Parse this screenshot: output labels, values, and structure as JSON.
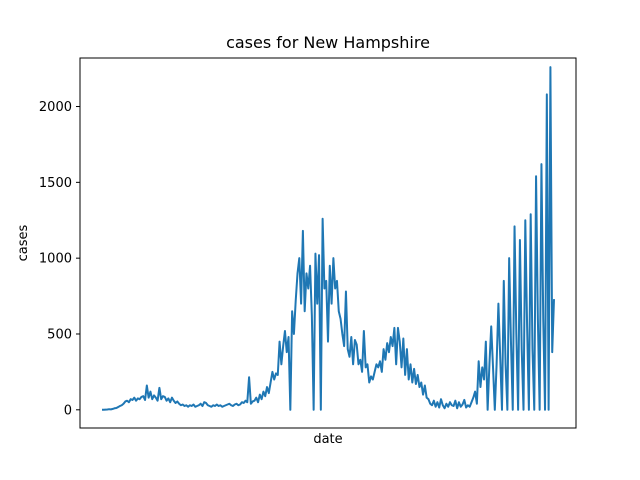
{
  "chart_data": {
    "type": "line",
    "title": "cases for New Hampshire",
    "xlabel": "date",
    "ylabel": "cases",
    "ylim": [
      -120,
      2320
    ],
    "yticks": [
      0,
      500,
      1000,
      1500,
      2000
    ],
    "xticks": [],
    "grid": false,
    "color": "#1f77b4",
    "series": [
      {
        "values": [
          0,
          0,
          1,
          2,
          4,
          3,
          6,
          10,
          12,
          18,
          25,
          30,
          40,
          55,
          60,
          50,
          70,
          65,
          80,
          60,
          75,
          70,
          85,
          90,
          65,
          160,
          80,
          120,
          70,
          95,
          80,
          60,
          145,
          70,
          90,
          85,
          60,
          75,
          50,
          80,
          60,
          45,
          55,
          40,
          30,
          35,
          25,
          30,
          20,
          30,
          25,
          35,
          20,
          25,
          30,
          40,
          25,
          50,
          45,
          30,
          25,
          20,
          30,
          25,
          35,
          25,
          30,
          20,
          25,
          30,
          35,
          40,
          30,
          25,
          35,
          40,
          30,
          35,
          50,
          45,
          60,
          50,
          215,
          40,
          55,
          60,
          80,
          50,
          100,
          70,
          120,
          90,
          150,
          110,
          180,
          250,
          200,
          240,
          230,
          450,
          300,
          420,
          520,
          380,
          480,
          0,
          650,
          500,
          720,
          900,
          1000,
          700,
          1180,
          650,
          900,
          800,
          950,
          620,
          0,
          1030,
          700,
          1020,
          0,
          1260,
          800,
          850,
          450,
          950,
          700,
          1000,
          800,
          850,
          650,
          600,
          500,
          420,
          780,
          400,
          350,
          480,
          300,
          460,
          430,
          300,
          330,
          250,
          520,
          280,
          300,
          180,
          220,
          200,
          250,
          300,
          280,
          320,
          250,
          400,
          330,
          440,
          380,
          480,
          420,
          540,
          300,
          540,
          450,
          280,
          470,
          230,
          400,
          200,
          300,
          180,
          270,
          170,
          230,
          150,
          180,
          100,
          160,
          80,
          70,
          40,
          30,
          60,
          20,
          50,
          15,
          70,
          30,
          10,
          40,
          20,
          50,
          30,
          25,
          60,
          10,
          50,
          20,
          35,
          65,
          15,
          30,
          20,
          50,
          80,
          120,
          40,
          320,
          150,
          280,
          200,
          450,
          0,
          300,
          550,
          280,
          0,
          300,
          700,
          350,
          0,
          850,
          300,
          0,
          1000,
          450,
          0,
          1210,
          500,
          0,
          1120,
          400,
          0,
          1250,
          550,
          0,
          1290,
          400,
          0,
          1540,
          600,
          0,
          1620,
          600,
          0,
          2080,
          0,
          2260,
          380,
          730
        ]
      }
    ]
  }
}
